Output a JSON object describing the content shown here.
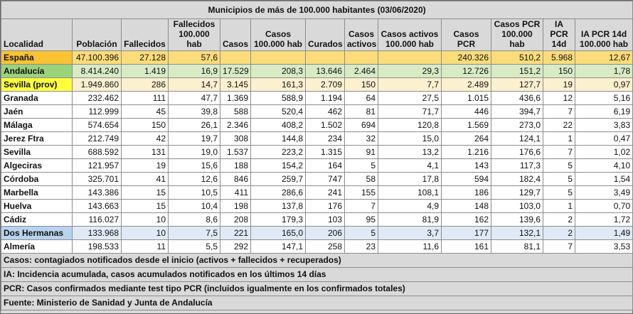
{
  "title": "Municipios de más de 100.000 habitantes (03/06/2020)",
  "headers": [
    "Localidad",
    "Población",
    "Fallecidos",
    "Fallecidos 100.000 hab",
    "Casos",
    "Casos 100.000 hab",
    "Curados",
    "Casos activos",
    "Casos activos 100.000 hab",
    "Casos PCR",
    "Casos PCR 100.000 hab",
    "IA PCR 14d",
    "IA PCR 14d 100.000 hab"
  ],
  "rows": [
    [
      "España",
      "47.100.396",
      "27.128",
      "57,6",
      "",
      "",
      "",
      "",
      "",
      "240.326",
      "510,2",
      "5.968",
      "12,67"
    ],
    [
      "Andalucía",
      "8.414.240",
      "1.419",
      "16,9",
      "17.529",
      "208,3",
      "13.646",
      "2.464",
      "29,3",
      "12.726",
      "151,2",
      "150",
      "1,78"
    ],
    [
      "Sevilla (prov)",
      "1.949.860",
      "286",
      "14,7",
      "3.145",
      "161,3",
      "2.709",
      "150",
      "7,7",
      "2.489",
      "127,7",
      "19",
      "0,97"
    ],
    [
      "Granada",
      "232.462",
      "111",
      "47,7",
      "1.369",
      "588,9",
      "1.194",
      "64",
      "27,5",
      "1.015",
      "436,6",
      "12",
      "5,16"
    ],
    [
      "Jaén",
      "112.999",
      "45",
      "39,8",
      "588",
      "520,4",
      "462",
      "81",
      "71,7",
      "446",
      "394,7",
      "7",
      "6,19"
    ],
    [
      "Málaga",
      "574.654",
      "150",
      "26,1",
      "2.346",
      "408,2",
      "1.502",
      "694",
      "120,8",
      "1.569",
      "273,0",
      "22",
      "3,83"
    ],
    [
      "Jerez Ftra",
      "212.749",
      "42",
      "19,7",
      "308",
      "144,8",
      "234",
      "32",
      "15,0",
      "264",
      "124,1",
      "1",
      "0,47"
    ],
    [
      "Sevilla",
      "688.592",
      "131",
      "19,0",
      "1.537",
      "223,2",
      "1.315",
      "91",
      "13,2",
      "1.216",
      "176,6",
      "7",
      "1,02"
    ],
    [
      "Algeciras",
      "121.957",
      "19",
      "15,6",
      "188",
      "154,2",
      "164",
      "5",
      "4,1",
      "143",
      "117,3",
      "5",
      "4,10"
    ],
    [
      "Córdoba",
      "325.701",
      "41",
      "12,6",
      "846",
      "259,7",
      "747",
      "58",
      "17,8",
      "594",
      "182,4",
      "5",
      "1,54"
    ],
    [
      "Marbella",
      "143.386",
      "15",
      "10,5",
      "411",
      "286,6",
      "241",
      "155",
      "108,1",
      "186",
      "129,7",
      "5",
      "3,49"
    ],
    [
      "Huelva",
      "143.663",
      "15",
      "10,4",
      "198",
      "137,8",
      "176",
      "7",
      "4,9",
      "148",
      "103,0",
      "1",
      "0,70"
    ],
    [
      "Cádiz",
      "116.027",
      "10",
      "8,6",
      "208",
      "179,3",
      "103",
      "95",
      "81,9",
      "162",
      "139,6",
      "2",
      "1,72"
    ],
    [
      "Dos Hermanas",
      "133.968",
      "10",
      "7,5",
      "221",
      "165,0",
      "206",
      "5",
      "3,7",
      "177",
      "132,1",
      "2",
      "1,49"
    ],
    [
      "Almería",
      "198.533",
      "11",
      "5,5",
      "292",
      "147,1",
      "258",
      "23",
      "11,6",
      "161",
      "81,1",
      "7",
      "3,53"
    ]
  ],
  "notes": [
    "Casos: contagiados notificados desde el inicio (activos + fallecidos + recuperados)",
    "IA: Incidencia acumulada, casos acumulados notificados en los últimos 14 días",
    "PCR: Casos confirmados mediante test tipo PCR (incluidos igualmente en los confirmados totales)",
    "Fuente: Ministerio de Sanidad y Junta de Andalucía"
  ]
}
